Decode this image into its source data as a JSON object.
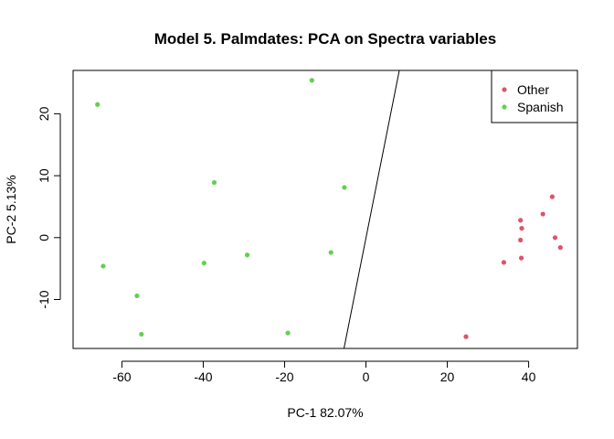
{
  "chart_data": {
    "type": "scatter",
    "title": "Model 5. Palmdates: PCA on Spectra variables",
    "xlabel": "PC-1 82.07%",
    "ylabel": "PC-2  5.13%",
    "xlim": [
      -72,
      52
    ],
    "ylim": [
      -17.9,
      27.0
    ],
    "xticks": [
      -60,
      -40,
      -20,
      0,
      20,
      40
    ],
    "yticks": [
      -10,
      0,
      10,
      20
    ],
    "xtick_labels": [
      "-60",
      "-40",
      "-20",
      "0",
      "20",
      "40"
    ],
    "ytick_labels": [
      "-10",
      "0",
      "10",
      "20"
    ],
    "legend_position": "top-right",
    "boundary_line": {
      "x": [
        -5.4,
        8.2
      ],
      "y": [
        -17.9,
        27.0
      ]
    },
    "series": [
      {
        "name": "Other",
        "color": "#DF536B",
        "points": [
          {
            "x": 45.8,
            "y": 6.6
          },
          {
            "x": 43.5,
            "y": 3.8
          },
          {
            "x": 38.0,
            "y": 2.8
          },
          {
            "x": 38.3,
            "y": 1.5
          },
          {
            "x": 46.5,
            "y": 0.0
          },
          {
            "x": 38.0,
            "y": -0.4
          },
          {
            "x": 47.8,
            "y": -1.6
          },
          {
            "x": 38.2,
            "y": -3.3
          },
          {
            "x": 33.9,
            "y": -4.0
          },
          {
            "x": 24.6,
            "y": -16.0
          }
        ]
      },
      {
        "name": "Spanish",
        "color": "#61D04F",
        "points": [
          {
            "x": -13.3,
            "y": 25.4
          },
          {
            "x": -66.0,
            "y": 21.5
          },
          {
            "x": -37.3,
            "y": 8.9
          },
          {
            "x": -5.3,
            "y": 8.1
          },
          {
            "x": -8.6,
            "y": -2.4
          },
          {
            "x": -29.2,
            "y": -2.8
          },
          {
            "x": -39.8,
            "y": -4.1
          },
          {
            "x": -64.6,
            "y": -4.6
          },
          {
            "x": -56.3,
            "y": -9.4
          },
          {
            "x": -19.2,
            "y": -15.4
          },
          {
            "x": -55.2,
            "y": -15.6
          }
        ]
      }
    ]
  }
}
